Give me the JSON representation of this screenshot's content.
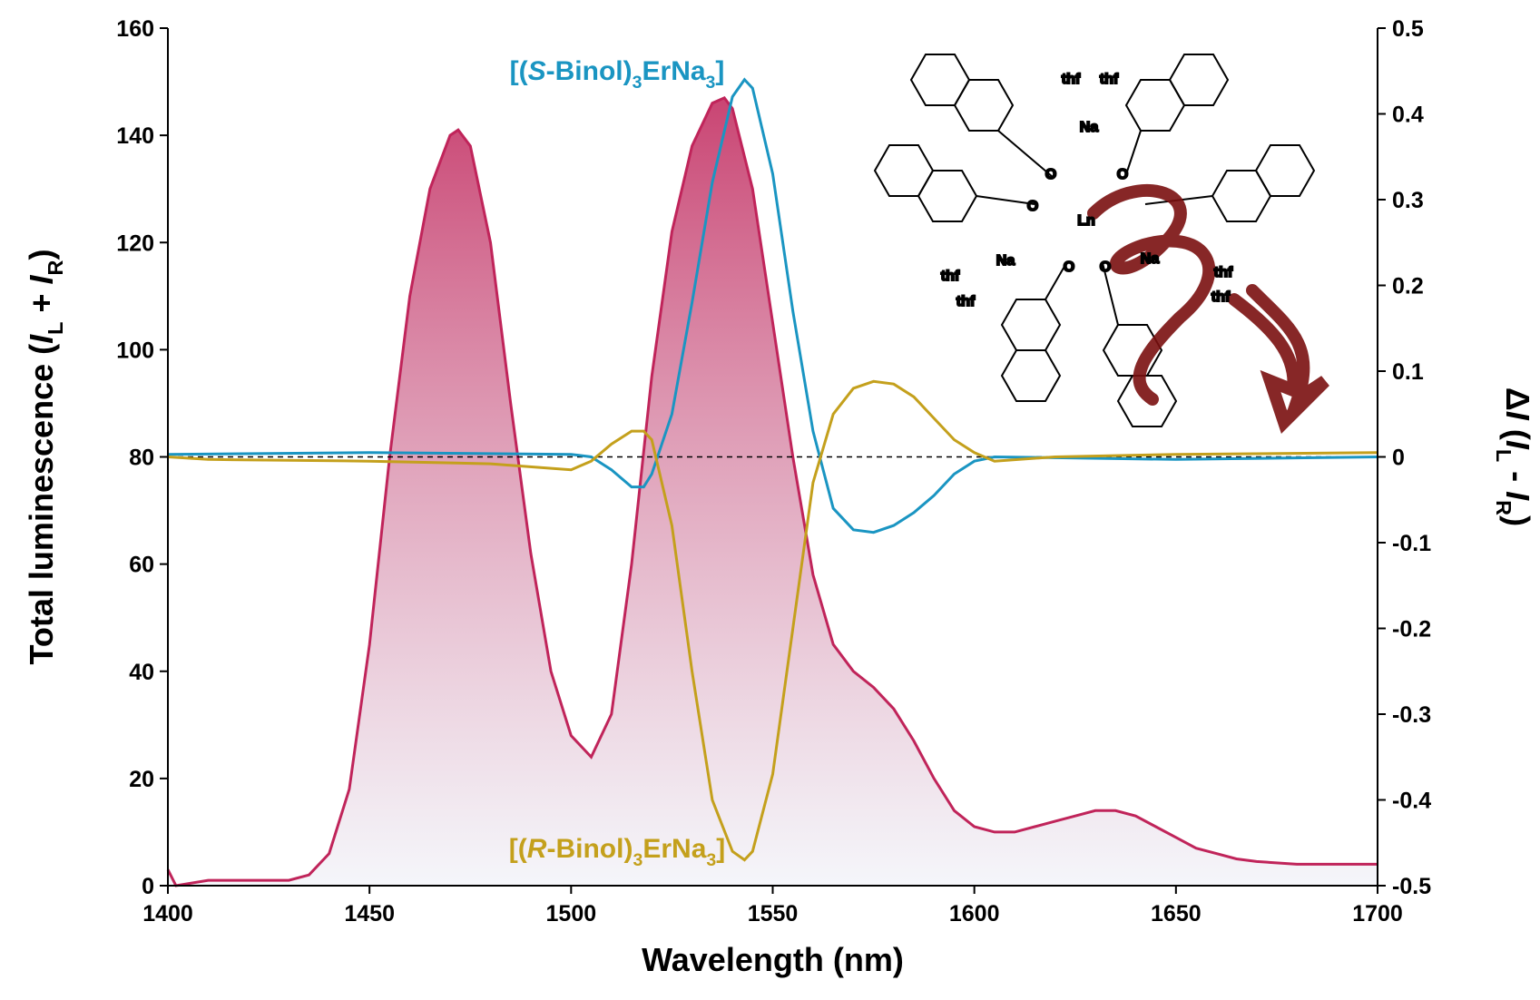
{
  "chart_data": {
    "type": "line",
    "xlabel": "Wavelength (nm)",
    "ylabel": "Total luminescence (IL + IR)",
    "y2label": "ΔI (IL - IR)",
    "xlim": [
      1400,
      1700
    ],
    "xticks": [
      1400,
      1450,
      1500,
      1550,
      1600,
      1650,
      1700
    ],
    "ylim": [
      0,
      160
    ],
    "yticks": [
      0,
      20,
      40,
      60,
      80,
      100,
      120,
      140,
      160
    ],
    "y2lim": [
      -0.5,
      0.5
    ],
    "y2ticks": [
      -0.5,
      -0.4,
      -0.3,
      -0.2,
      -0.1,
      0,
      0.1,
      0.2,
      0.3,
      0.4,
      0.5
    ],
    "series": [
      {
        "color": "#c0245a",
        "fill": "area",
        "x": [
          1400,
          1402,
          1410,
          1420,
          1430,
          1435,
          1440,
          1445,
          1450,
          1455,
          1460,
          1465,
          1470,
          1472,
          1475,
          1480,
          1485,
          1490,
          1495,
          1500,
          1505,
          1510,
          1515,
          1520,
          1525,
          1530,
          1535,
          1538,
          1540,
          1545,
          1550,
          1555,
          1560,
          1565,
          1570,
          1575,
          1580,
          1585,
          1590,
          1595,
          1600,
          1605,
          1610,
          1615,
          1620,
          1625,
          1630,
          1635,
          1640,
          1645,
          1650,
          1655,
          1660,
          1665,
          1670,
          1680,
          1690,
          1700
        ],
        "values": [
          3,
          0,
          1,
          1,
          1,
          2,
          6,
          18,
          45,
          80,
          110,
          130,
          140,
          141,
          138,
          120,
          90,
          62,
          40,
          28,
          24,
          32,
          60,
          95,
          122,
          138,
          146,
          147,
          145,
          130,
          105,
          80,
          58,
          45,
          40,
          37,
          33,
          27,
          20,
          14,
          11,
          10,
          10,
          11,
          12,
          13,
          14,
          14,
          13,
          11,
          9,
          7,
          6,
          5,
          4.5,
          4,
          4,
          4
        ]
      },
      {
        "name": "[(S-Binol)3ErNa3]",
        "color": "#1a95c2",
        "axis": "y2",
        "x": [
          1400,
          1450,
          1500,
          1505,
          1510,
          1515,
          1518,
          1520,
          1525,
          1530,
          1535,
          1540,
          1543,
          1545,
          1550,
          1555,
          1560,
          1565,
          1570,
          1575,
          1580,
          1585,
          1590,
          1595,
          1600,
          1605,
          1620,
          1650,
          1700
        ],
        "values": [
          0.003,
          0.005,
          0.003,
          0,
          -0.015,
          -0.035,
          -0.035,
          -0.02,
          0.05,
          0.18,
          0.32,
          0.42,
          0.44,
          0.43,
          0.33,
          0.17,
          0.03,
          -0.06,
          -0.085,
          -0.088,
          -0.08,
          -0.065,
          -0.045,
          -0.02,
          -0.005,
          0,
          -0.001,
          -0.003,
          0
        ]
      },
      {
        "name": "[(R-Binol)3ErNa3]",
        "color": "#c4a01c",
        "axis": "y2",
        "x": [
          1400,
          1410,
          1450,
          1480,
          1500,
          1505,
          1510,
          1515,
          1518,
          1520,
          1525,
          1530,
          1535,
          1540,
          1543,
          1545,
          1550,
          1555,
          1560,
          1565,
          1570,
          1575,
          1580,
          1585,
          1590,
          1595,
          1600,
          1605,
          1620,
          1650,
          1700
        ],
        "values": [
          0,
          -0.003,
          -0.005,
          -0.008,
          -0.015,
          -0.005,
          0.015,
          0.03,
          0.03,
          0.02,
          -0.08,
          -0.25,
          -0.4,
          -0.46,
          -0.47,
          -0.46,
          -0.37,
          -0.2,
          -0.03,
          0.05,
          0.08,
          0.088,
          0.085,
          0.07,
          0.045,
          0.02,
          0.005,
          -0.005,
          0,
          0.003,
          0.005
        ]
      }
    ]
  },
  "structure_labels": [
    "thf",
    "thf",
    "Na",
    "O",
    "O",
    "O",
    "Ln",
    "O",
    "O",
    "Na",
    "thf",
    "thf",
    "Na",
    "thf",
    "thf"
  ]
}
